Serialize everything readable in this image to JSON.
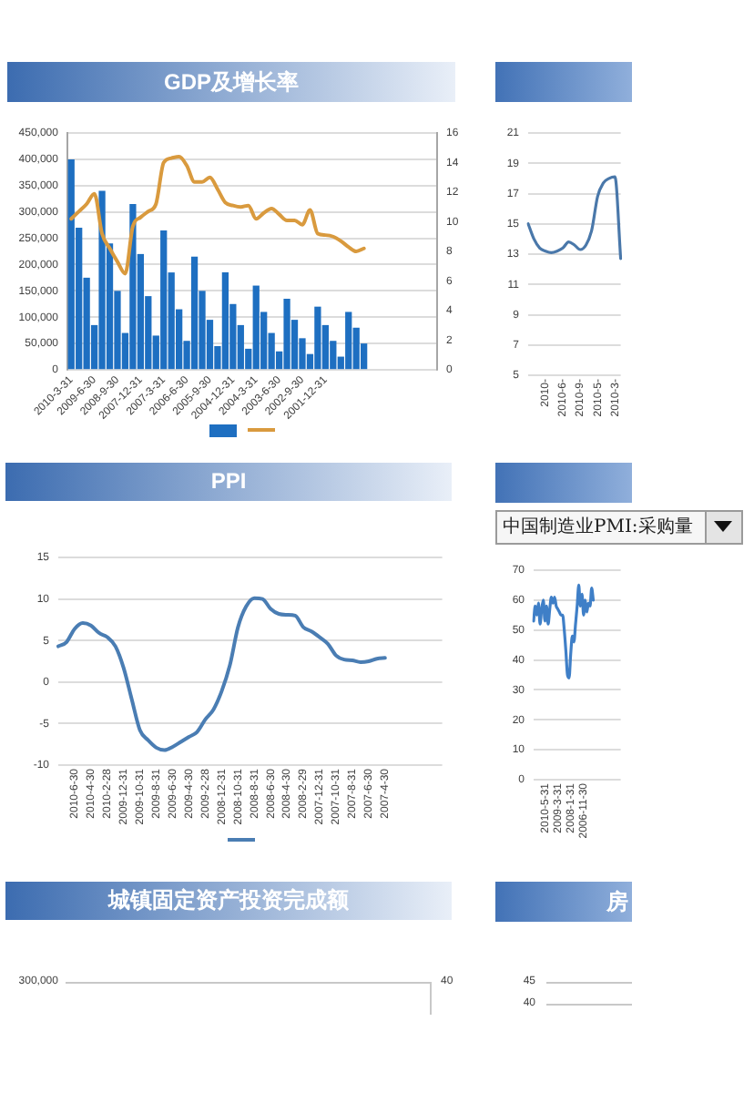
{
  "chart_data": [
    {
      "type": "bar",
      "title": "GDP及增长率",
      "categories": [
        "2010-3-31",
        null,
        null,
        "2009-6-30",
        null,
        null,
        "2008-9-30",
        null,
        null,
        "2007-12-31",
        null,
        null,
        "2007-3-31",
        null,
        null,
        "2006-6-30",
        null,
        null,
        "2005-9-30",
        null,
        null,
        "2004-12-31",
        null,
        null,
        "2004-3-31",
        null,
        null,
        "2003-6-30",
        null,
        null,
        "2002-9-30",
        null,
        null,
        "2001-12-31",
        null,
        null,
        null,
        null,
        null,
        null,
        null,
        null,
        null,
        null,
        null,
        null,
        null,
        null
      ],
      "series": [
        {
          "type": "bar",
          "color": "#1e6fc1",
          "values": [
            400000,
            270000,
            175000,
            85000,
            340000,
            240000,
            150000,
            70000,
            315000,
            220000,
            140000,
            65000,
            265000,
            185000,
            115000,
            55000,
            215000,
            150000,
            95000,
            45000,
            185000,
            125000,
            85000,
            40000,
            160000,
            110000,
            70000,
            35000,
            135000,
            95000,
            60000,
            30000,
            120000,
            85000,
            55000,
            25000,
            110000,
            80000,
            50000,
            null,
            null,
            null,
            null,
            null,
            null,
            null,
            null,
            null
          ]
        },
        {
          "type": "line",
          "axis": "y2",
          "color": "#d99a3e",
          "values": [
            10.2,
            10.7,
            11.2,
            11.9,
            9.2,
            8.2,
            7.3,
            6.5,
            9.7,
            10.3,
            10.7,
            11.2,
            14.0,
            14.3,
            14.4,
            13.8,
            12.7,
            12.7,
            13.0,
            12.2,
            11.3,
            11.1,
            11.0,
            11.1,
            10.2,
            10.6,
            10.9,
            10.5,
            10.1,
            10.1,
            9.8,
            10.8,
            9.2,
            9.1,
            9.0,
            8.7,
            8.3,
            8.0,
            8.2,
            null,
            null,
            null,
            null,
            null,
            null,
            null,
            null,
            null
          ]
        }
      ],
      "ylim": [
        0,
        450000
      ],
      "yticks": [
        0,
        {
          "value": 50000,
          "label": "50,000"
        },
        {
          "value": 100000,
          "label": "100,000"
        },
        {
          "value": 150000,
          "label": "150,000"
        },
        {
          "value": 200000,
          "label": "200,000"
        },
        {
          "value": 250000,
          "label": "250,000"
        },
        {
          "value": 300000,
          "label": "300,000"
        },
        {
          "value": 350000,
          "label": "350,000"
        },
        {
          "value": 400000,
          "label": "400,000"
        },
        {
          "value": 450000,
          "label": "450,000"
        }
      ],
      "y2lim": [
        0,
        16
      ],
      "y2ticks": [
        0,
        2,
        4,
        6,
        8,
        10,
        12,
        14,
        16
      ],
      "grid": "y"
    },
    {
      "type": "line",
      "categories": [
        null,
        null,
        null,
        "2010-",
        null,
        null,
        "2010-6-",
        null,
        null,
        "2010-9-",
        null,
        null,
        "2010-5-",
        null,
        null,
        "2010-3-",
        null
      ],
      "series": [
        {
          "color": "#4a78aa",
          "values": [
            15.0,
            14.0,
            13.4,
            13.2,
            13.1,
            13.2,
            13.4,
            13.8,
            13.6,
            13.3,
            13.6,
            14.6,
            16.8,
            17.7,
            18.0,
            18.1,
            12.7
          ]
        }
      ],
      "ylim": [
        5,
        21
      ],
      "yticks": [
        5,
        7,
        9,
        11,
        13,
        15,
        17,
        19,
        21
      ],
      "grid": "y"
    },
    {
      "type": "line",
      "title": "PPI",
      "categories": [
        null,
        null,
        "2010-6-30",
        null,
        "2010-4-30",
        null,
        "2010-2-28",
        null,
        "2009-12-31",
        null,
        "2009-10-31",
        null,
        "2009-8-31",
        null,
        "2009-6-30",
        null,
        "2009-4-30",
        null,
        "2009-2-28",
        null,
        "2008-12-31",
        null,
        "2008-10-31",
        null,
        "2008-8-31",
        null,
        "2008-6-30",
        null,
        "2008-4-30",
        null,
        "2008-2-29",
        null,
        "2007-12-31",
        null,
        "2007-10-31",
        null,
        "2007-8-31",
        null,
        "2007-6-30",
        null,
        "2007-4-30",
        null,
        null,
        null,
        null,
        null,
        null,
        null
      ],
      "series": [
        {
          "color": "#4a7db3",
          "values": [
            4.3,
            4.8,
            6.4,
            7.1,
            6.8,
            5.9,
            5.4,
            4.3,
            1.7,
            -2.1,
            -5.8,
            -7.0,
            -7.9,
            -8.2,
            -7.8,
            -7.2,
            -6.6,
            -6.0,
            -4.5,
            -3.3,
            -1.1,
            2.0,
            6.6,
            9.1,
            10.1,
            10.0,
            8.8,
            8.2,
            8.1,
            8.0,
            6.6,
            6.1,
            5.4,
            4.6,
            3.2,
            2.7,
            2.6,
            2.4,
            2.5,
            2.8,
            2.9,
            null,
            null,
            null,
            null,
            null,
            null,
            null
          ]
        }
      ],
      "ylim": [
        -10,
        15
      ],
      "yticks": [
        -10,
        -5,
        0,
        5,
        10,
        15
      ],
      "grid": "y"
    },
    {
      "type": "line",
      "subtitle": "中国制造业PMI:采购量",
      "categories": [
        null,
        null,
        null,
        null,
        null,
        null,
        null,
        "2010-5-31",
        null,
        null,
        null,
        null,
        null,
        null,
        null,
        "2009-3-31",
        null,
        null,
        null,
        null,
        null,
        null,
        null,
        "2008-1-31",
        null,
        null,
        null,
        null,
        null,
        null,
        null,
        "2006-11-30",
        null,
        null,
        null,
        null,
        null,
        null,
        null,
        null,
        null,
        null,
        null,
        null,
        null,
        null,
        null,
        null,
        null,
        null,
        null,
        null,
        null,
        null,
        null
      ],
      "series": [
        {
          "color": "#3f7fc7",
          "values": [
            53,
            58,
            55,
            59,
            52,
            57,
            60,
            53,
            58,
            52,
            57,
            61,
            59,
            61,
            58,
            57,
            56,
            55,
            55,
            50,
            43,
            35,
            34,
            42,
            48,
            46,
            52,
            58,
            65,
            58,
            62,
            55,
            60,
            56,
            59,
            58,
            64,
            60,
            null,
            null,
            null,
            null,
            null,
            null,
            null,
            null,
            null,
            null,
            null,
            null,
            null,
            null,
            null,
            null,
            null
          ]
        }
      ],
      "ylim": [
        0,
        70
      ],
      "yticks": [
        0,
        10,
        20,
        30,
        40,
        50,
        60,
        70
      ],
      "grid": "y"
    },
    {
      "type": "other",
      "title": "城镇固定资产投资完成额",
      "annotations": [
        "300,000",
        "40"
      ]
    },
    {
      "type": "other",
      "title": "房",
      "annotations": [
        "45",
        "40"
      ]
    }
  ]
}
